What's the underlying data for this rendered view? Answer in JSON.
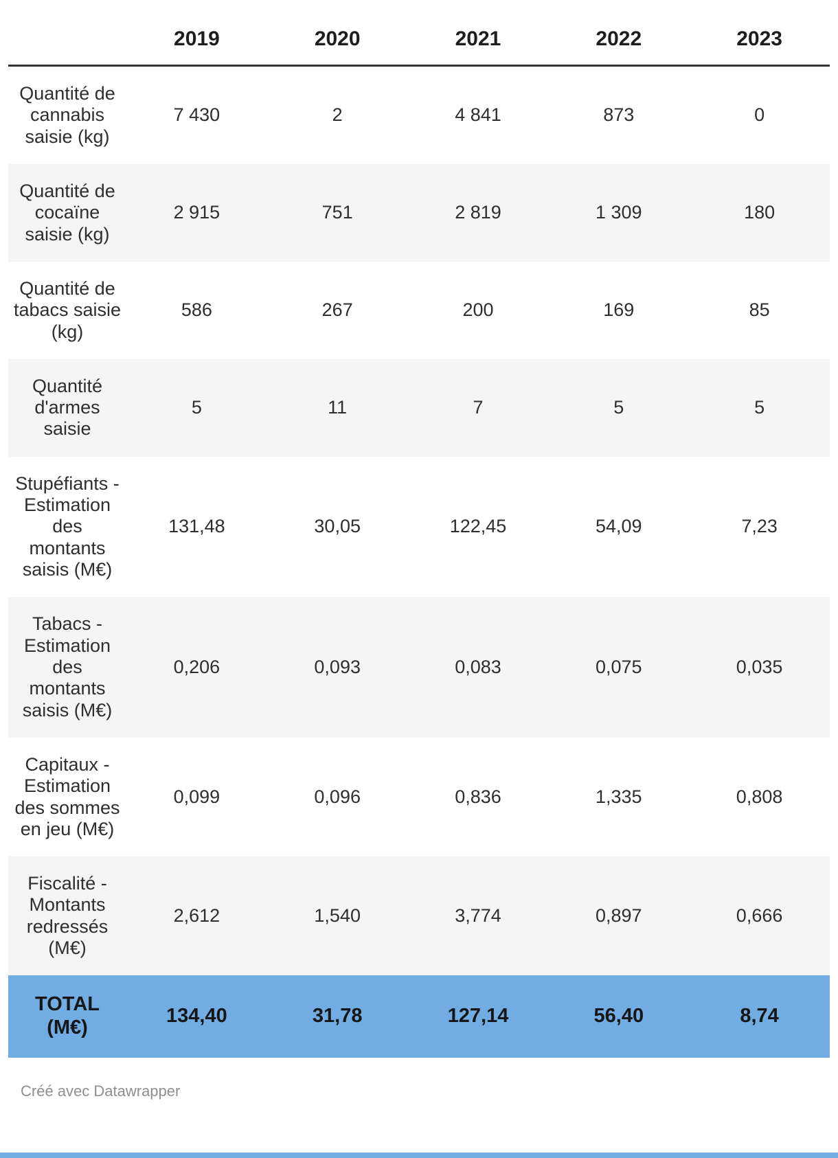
{
  "chart_data": {
    "type": "table",
    "columns": [
      "2019",
      "2020",
      "2021",
      "2022",
      "2023"
    ],
    "rows": [
      {
        "label": "Quantité de cannabis saisie (kg)",
        "values": [
          "7 430",
          "2",
          "4 841",
          "873",
          "0"
        ]
      },
      {
        "label": "Quantité de cocaïne saisie (kg)",
        "values": [
          "2 915",
          "751",
          "2 819",
          "1 309",
          "180"
        ]
      },
      {
        "label": "Quantité de tabacs saisie (kg)",
        "values": [
          "586",
          "267",
          "200",
          "169",
          "85"
        ]
      },
      {
        "label": "Quantité d'armes saisie",
        "values": [
          "5",
          "11",
          "7",
          "5",
          "5"
        ]
      },
      {
        "label": "Stupéfiants - Estimation des montants saisis (M€)",
        "values": [
          "131,48",
          "30,05",
          "122,45",
          "54,09",
          "7,23"
        ]
      },
      {
        "label": "Tabacs - Estimation des montants saisis (M€)",
        "values": [
          "0,206",
          "0,093",
          "0,083",
          "0,075",
          "0,035"
        ]
      },
      {
        "label": "Capitaux - Estimation des sommes en jeu (M€)",
        "values": [
          "0,099",
          "0,096",
          "0,836",
          "1,335",
          "0,808"
        ]
      },
      {
        "label": "Fiscalité - Montants redressés (M€)",
        "values": [
          "2,612",
          "1,540",
          "3,774",
          "0,897",
          "0,666"
        ]
      },
      {
        "label": "TOTAL (M€)",
        "values": [
          "134,40",
          "31,78",
          "127,14",
          "56,40",
          "8,74"
        ]
      }
    ],
    "title": "",
    "legend": "none",
    "grid": "row-stripes"
  },
  "footer": {
    "credit": "Créé avec Datawrapper"
  },
  "colors": {
    "total_row_bg": "#71ade3",
    "alt_row_bg": "#f5f5f5",
    "header_border": "#333333",
    "bottom_bar": "#71ade3",
    "credit_text": "#8f8f8f"
  }
}
